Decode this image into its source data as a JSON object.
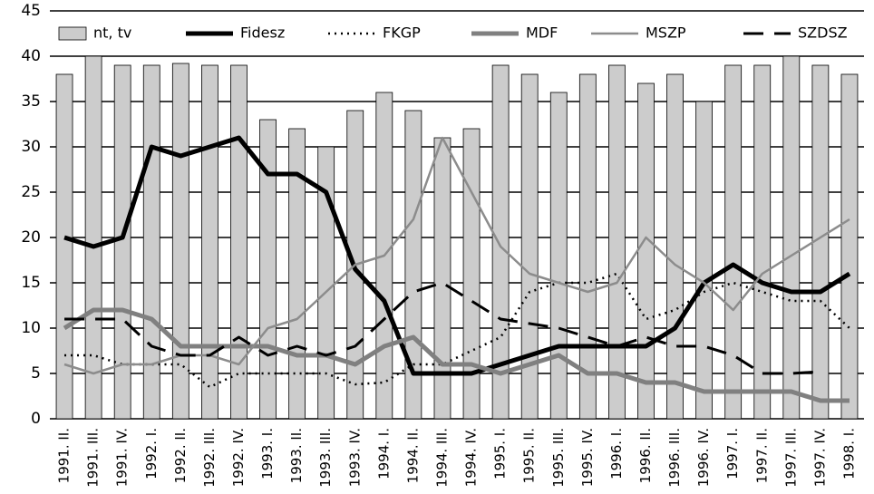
{
  "chart_data": {
    "type": "bar_line",
    "categories": [
      "1991. II.",
      "1991. III.",
      "1991. IV.",
      "1992. I.",
      "1992. II.",
      "1992. III.",
      "1992. IV.",
      "1993. I.",
      "1993. II.",
      "1993. III.",
      "1993. IV.",
      "1994. I.",
      "1994. II.",
      "1994. III.",
      "1994. IV.",
      "1995. I.",
      "1995. II.",
      "1995. III.",
      "1995. IV.",
      "1996. I.",
      "1996. II.",
      "1996. III.",
      "1996. IV.",
      "1997. I.",
      "1997. II.",
      "1997. III.",
      "1997. IV.",
      "1998. I."
    ],
    "bar_series": {
      "name": "nt, tv",
      "color": "#cccccc",
      "values": [
        38,
        40,
        39,
        39,
        39.2,
        39,
        39,
        33,
        32,
        30,
        34,
        36,
        34,
        31,
        32,
        39,
        38,
        36,
        38,
        39,
        37,
        38,
        35,
        39,
        39,
        40,
        39,
        38
      ]
    },
    "series": [
      {
        "name": "Fidesz",
        "color": "#000000",
        "width": 5,
        "dash": "none",
        "values": [
          20,
          19,
          20,
          30,
          29,
          30,
          31,
          27,
          27,
          25,
          16.5,
          13,
          5,
          5,
          5,
          6,
          7,
          8,
          8,
          8,
          8,
          10,
          15,
          17,
          15,
          14,
          14,
          16
        ]
      },
      {
        "name": "FKGP",
        "color": "#000000",
        "width": 2.5,
        "dash": "2 5",
        "values": [
          7,
          7,
          6,
          6,
          6,
          3.5,
          5,
          5,
          5,
          5,
          3.8,
          4,
          6,
          6,
          7.5,
          9,
          14,
          15,
          15,
          16,
          11,
          12,
          14,
          15,
          14,
          13,
          13,
          10
        ]
      },
      {
        "name": "MDF",
        "color": "#808080",
        "width": 5,
        "dash": "none",
        "values": [
          10,
          12,
          12,
          11,
          8,
          8,
          8,
          8,
          7,
          7,
          6,
          8,
          9,
          6,
          6,
          5,
          6,
          7,
          5,
          5,
          4,
          4,
          3,
          3,
          3,
          3,
          2,
          2
        ]
      },
      {
        "name": "MSZP",
        "color": "#8c8c8c",
        "width": 2.5,
        "dash": "none",
        "values": [
          6,
          5,
          6,
          6,
          7,
          7,
          6,
          10,
          11,
          14,
          17,
          18,
          22,
          31,
          25,
          19,
          16,
          15,
          14,
          15,
          20,
          17,
          15,
          12,
          16,
          18,
          20,
          22
        ]
      },
      {
        "name": "SZDSZ",
        "color": "#000000",
        "width": 3,
        "dash": "22 12",
        "values": [
          11,
          11,
          11,
          8,
          7,
          7,
          9,
          7,
          8,
          7,
          8,
          11,
          14,
          15,
          13,
          11,
          10.5,
          10,
          9,
          8,
          9,
          8,
          8,
          7,
          5,
          5,
          5.2,
          null
        ]
      }
    ],
    "ylim": [
      0,
      45
    ],
    "yticks": [
      0,
      5,
      10,
      15,
      20,
      25,
      30,
      35,
      40,
      45
    ],
    "grid": true
  }
}
